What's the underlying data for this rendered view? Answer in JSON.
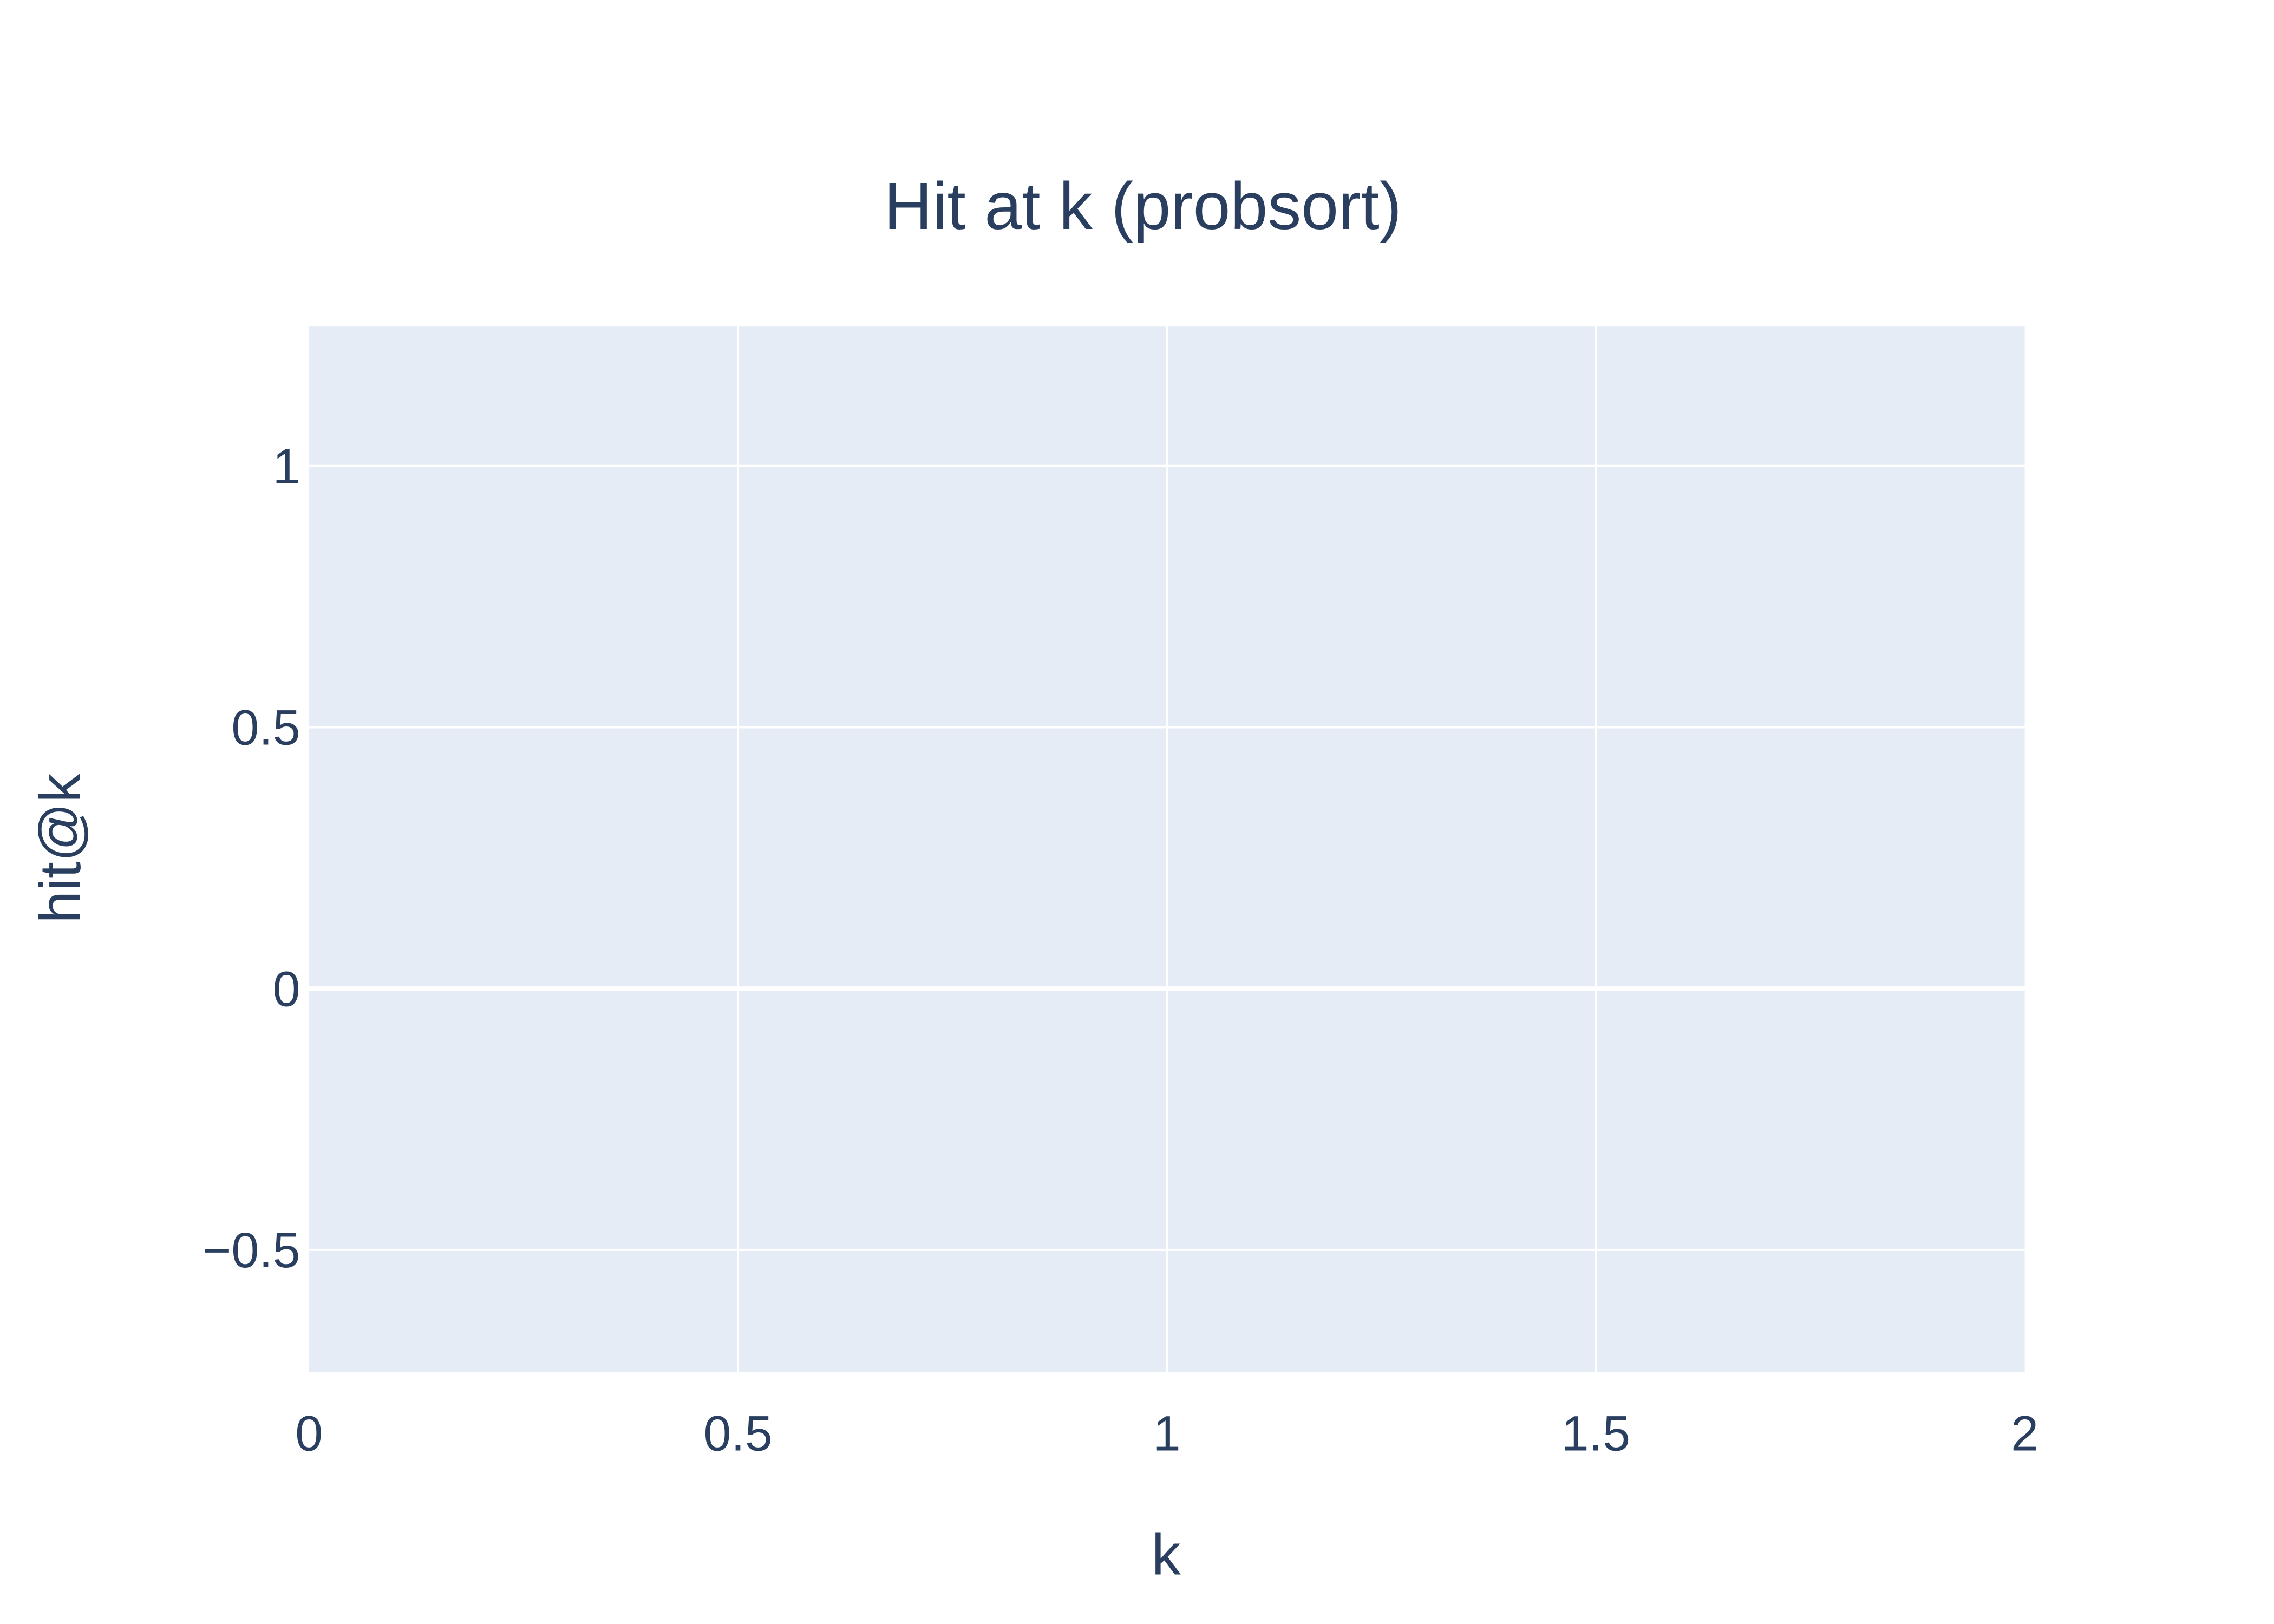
{
  "chart_data": {
    "type": "line",
    "title": "Hit at k (probsort)",
    "xlabel": "k",
    "ylabel": "hit@k",
    "xlim": [
      0,
      2
    ],
    "ylim": [
      -0.7333,
      1.2667
    ],
    "xticks": [
      0,
      0.5,
      1,
      1.5,
      2
    ],
    "xtick_labels": [
      "0",
      "0.5",
      "1",
      "1.5",
      "2"
    ],
    "yticks": [
      -0.5,
      0,
      0.5,
      1
    ],
    "ytick_labels": [
      "−0.5",
      "0",
      "0.5",
      "1"
    ],
    "grid": true,
    "series": []
  },
  "colors": {
    "plot_background": "#E5ECF6",
    "paper_background": "#FFFFFF",
    "text": "#2A3F5F",
    "grid": "#FFFFFF"
  }
}
